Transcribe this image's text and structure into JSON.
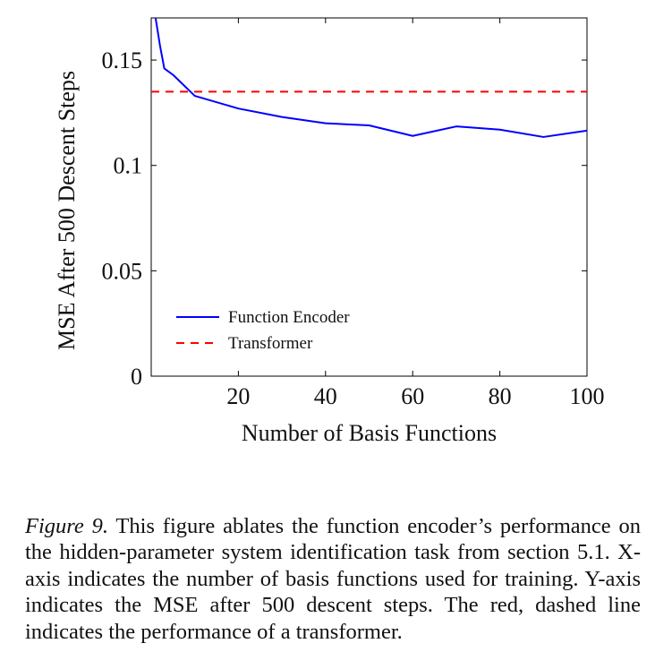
{
  "chart_data": {
    "type": "line",
    "xlabel": "Number of Basis Functions",
    "ylabel": "MSE After 500 Descent Steps",
    "xlim": [
      0,
      100
    ],
    "ylim": [
      0,
      0.17
    ],
    "xticks": [
      20,
      40,
      60,
      80,
      100
    ],
    "yticks": [
      0,
      0.05,
      0.1,
      0.15
    ],
    "xtick_labels": [
      "20",
      "40",
      "60",
      "80",
      "100"
    ],
    "ytick_labels": [
      "0",
      "0.05",
      "0.1",
      "0.15"
    ],
    "grid": false,
    "legend_position": "bottom-left",
    "series": [
      {
        "name": "Function Encoder",
        "style": "solid",
        "color": "#0000ff",
        "x": [
          1,
          2,
          3,
          5,
          10,
          20,
          30,
          40,
          50,
          60,
          70,
          80,
          90,
          100
        ],
        "y": [
          0.17,
          0.157,
          0.146,
          0.143,
          0.133,
          0.127,
          0.123,
          0.12,
          0.119,
          0.114,
          0.1185,
          0.117,
          0.1135,
          0.1165
        ]
      },
      {
        "name": "Transformer",
        "style": "dashed",
        "color": "#ff0000",
        "x": [
          0,
          100
        ],
        "y": [
          0.135,
          0.135
        ]
      }
    ]
  },
  "caption": {
    "label": "Figure 9.",
    "text": " This figure ablates the function encoder’s performance on the hidden-parameter system identification task from section 5.1. X-axis indicates the number of basis functions used for training. Y-axis indicates the MSE after 500 descent steps. The red, dashed line indicates the performance of a transformer."
  }
}
